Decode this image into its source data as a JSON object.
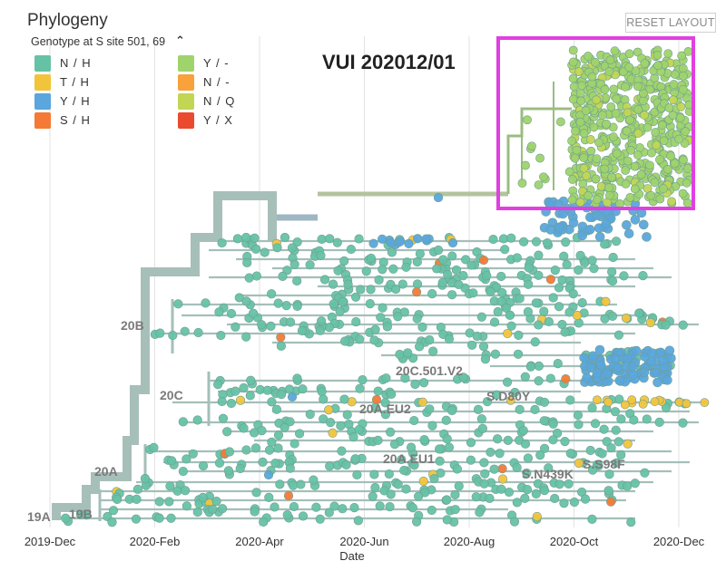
{
  "panel": {
    "title": "Phylogeny",
    "genotype_label": "Genotype at S site 501, 69",
    "collapse_icon": "chevron-up-icon",
    "reset_label": "RESET LAYOUT"
  },
  "annotation": {
    "vui_label": "VUI 202012/01",
    "highlight_color": "#e040e0"
  },
  "chart_data": {
    "type": "scatter",
    "title": "Phylogeny",
    "xlabel": "Date",
    "ylabel": "",
    "x_ticks": [
      "2019-Dec",
      "2020-Feb",
      "2020-Apr",
      "2020-Jun",
      "2020-Aug",
      "2020-Oct",
      "2020-Dec"
    ],
    "x_range_months": [
      -0.2,
      12.2
    ],
    "legend_title": "Genotype at S site 501, 69",
    "legend": [
      {
        "label": "N / H",
        "color": "#66c2a5"
      },
      {
        "label": "T / H",
        "color": "#f2c43c"
      },
      {
        "label": "Y / H",
        "color": "#5aa6dd"
      },
      {
        "label": "S / H",
        "color": "#f47a35"
      },
      {
        "label": "Y / -",
        "color": "#9fd36b"
      },
      {
        "label": "N / -",
        "color": "#f7a23a"
      },
      {
        "label": "N / Q",
        "color": "#c2d653"
      },
      {
        "label": "Y / X",
        "color": "#ea4a2e"
      }
    ],
    "clade_labels": [
      "19A",
      "19B",
      "20A",
      "20B",
      "20C",
      "20A.EU1",
      "20A.EU2",
      "20C.501.V2",
      "S.D80Y",
      "S.S98F",
      "S.N439K"
    ],
    "highlight_label": "VUI 202012/01"
  }
}
